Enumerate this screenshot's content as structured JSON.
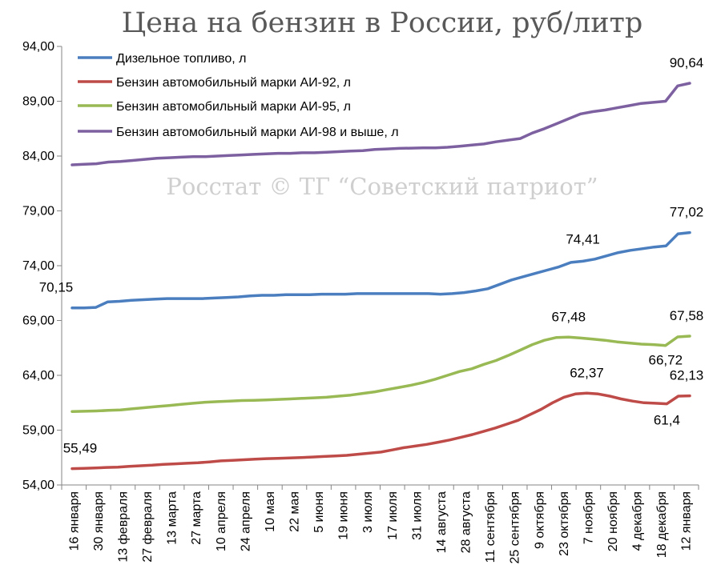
{
  "chart_data": {
    "type": "line",
    "title": "Цена на бензин в России, руб/литр",
    "watermark": "Росстат © ТГ “Советский патриот”",
    "ylim": [
      54,
      94
    ],
    "yticks": [
      "54,00",
      "59,00",
      "64,00",
      "69,00",
      "74,00",
      "79,00",
      "84,00",
      "89,00",
      "94,00"
    ],
    "grid": false,
    "legend_position": "top-left",
    "x_labels": [
      "16 января",
      "30 января",
      "13 февраля",
      "27 февраля",
      "13 марта",
      "27 марта",
      "10 апреля",
      "24 апреля",
      "10 мая",
      "22 мая",
      "5 июня",
      "19 июня",
      "3 июля",
      "17 июля",
      "31 июля",
      "14 августа",
      "28 августа",
      "11 сентября",
      "25 сентября",
      "9 октября",
      "23 октября",
      "7 ноября",
      "20 ноября",
      "4 декабря",
      "18 декабря",
      "12 января"
    ],
    "series": [
      {
        "name": "Дизельное топливо, л",
        "color": "#4a7ebf",
        "values": [
          70.15,
          70.15,
          70.2,
          70.7,
          70.75,
          70.85,
          70.9,
          70.95,
          71.0,
          71.0,
          71.0,
          71.0,
          71.05,
          71.1,
          71.15,
          71.25,
          71.3,
          71.3,
          71.35,
          71.35,
          71.35,
          71.4,
          71.4,
          71.4,
          71.45,
          71.45,
          71.45,
          71.45,
          71.45,
          71.45,
          71.45,
          71.4,
          71.45,
          71.55,
          71.7,
          71.9,
          72.3,
          72.7,
          73.0,
          73.3,
          73.6,
          73.9,
          74.3,
          74.41,
          74.6,
          74.9,
          75.2,
          75.4,
          75.55,
          75.7,
          75.8,
          76.9,
          77.02
        ]
      },
      {
        "name": "Бензин автомобильный марки АИ-92, л",
        "color": "#be4b48",
        "values": [
          55.49,
          55.52,
          55.55,
          55.6,
          55.63,
          55.7,
          55.75,
          55.8,
          55.88,
          55.93,
          55.98,
          56.02,
          56.1,
          56.2,
          56.25,
          56.3,
          56.35,
          56.4,
          56.43,
          56.46,
          56.5,
          56.55,
          56.6,
          56.65,
          56.7,
          56.8,
          56.9,
          57.0,
          57.2,
          57.4,
          57.55,
          57.7,
          57.9,
          58.1,
          58.35,
          58.6,
          58.9,
          59.2,
          59.55,
          59.9,
          60.4,
          60.9,
          61.5,
          62.0,
          62.3,
          62.37,
          62.3,
          62.1,
          61.85,
          61.65,
          61.5,
          61.45,
          61.4,
          62.1,
          62.13
        ]
      },
      {
        "name": "Бензин автомобильный марки АИ-95, л",
        "color": "#98b954",
        "values": [
          60.7,
          60.72,
          60.75,
          60.8,
          60.85,
          60.95,
          61.05,
          61.15,
          61.25,
          61.35,
          61.45,
          61.55,
          61.6,
          61.65,
          61.7,
          61.72,
          61.75,
          61.8,
          61.85,
          61.9,
          61.95,
          62.0,
          62.1,
          62.2,
          62.35,
          62.5,
          62.7,
          62.9,
          63.1,
          63.35,
          63.65,
          64.0,
          64.35,
          64.6,
          65.0,
          65.35,
          65.8,
          66.3,
          66.8,
          67.2,
          67.45,
          67.48,
          67.4,
          67.3,
          67.2,
          67.05,
          66.95,
          66.85,
          66.8,
          66.72,
          67.5,
          67.58
        ]
      },
      {
        "name": "Бензин автомобильный марки АИ-98 и выше, л",
        "color": "#7d60a0",
        "values": [
          83.2,
          83.25,
          83.3,
          83.45,
          83.5,
          83.6,
          83.7,
          83.8,
          83.85,
          83.9,
          83.95,
          83.95,
          84.0,
          84.05,
          84.1,
          84.15,
          84.2,
          84.25,
          84.25,
          84.3,
          84.3,
          84.35,
          84.4,
          84.45,
          84.5,
          84.6,
          84.65,
          84.7,
          84.72,
          84.75,
          84.75,
          84.8,
          84.9,
          85.0,
          85.1,
          85.3,
          85.45,
          85.6,
          86.1,
          86.5,
          86.95,
          87.4,
          87.85,
          88.05,
          88.2,
          88.4,
          88.6,
          88.8,
          88.9,
          89.0,
          90.4,
          90.64
        ]
      }
    ],
    "data_labels": [
      {
        "text": "70,15",
        "series": 0,
        "position": "start-above"
      },
      {
        "text": "74,41",
        "series": 0,
        "position": "near-7-nov"
      },
      {
        "text": "77,02",
        "series": 0,
        "position": "end-above"
      },
      {
        "text": "55,49",
        "series": 1,
        "position": "start-above"
      },
      {
        "text": "62,37",
        "series": 1,
        "position": "peak-above"
      },
      {
        "text": "61,4",
        "series": 1,
        "position": "dip-below"
      },
      {
        "text": "62,13",
        "series": 1,
        "position": "end-above"
      },
      {
        "text": "67,48",
        "series": 2,
        "position": "peak-above"
      },
      {
        "text": "66,72",
        "series": 2,
        "position": "dip-below"
      },
      {
        "text": "67,58",
        "series": 2,
        "position": "end-above"
      },
      {
        "text": "90,64",
        "series": 3,
        "position": "end-above"
      }
    ]
  }
}
